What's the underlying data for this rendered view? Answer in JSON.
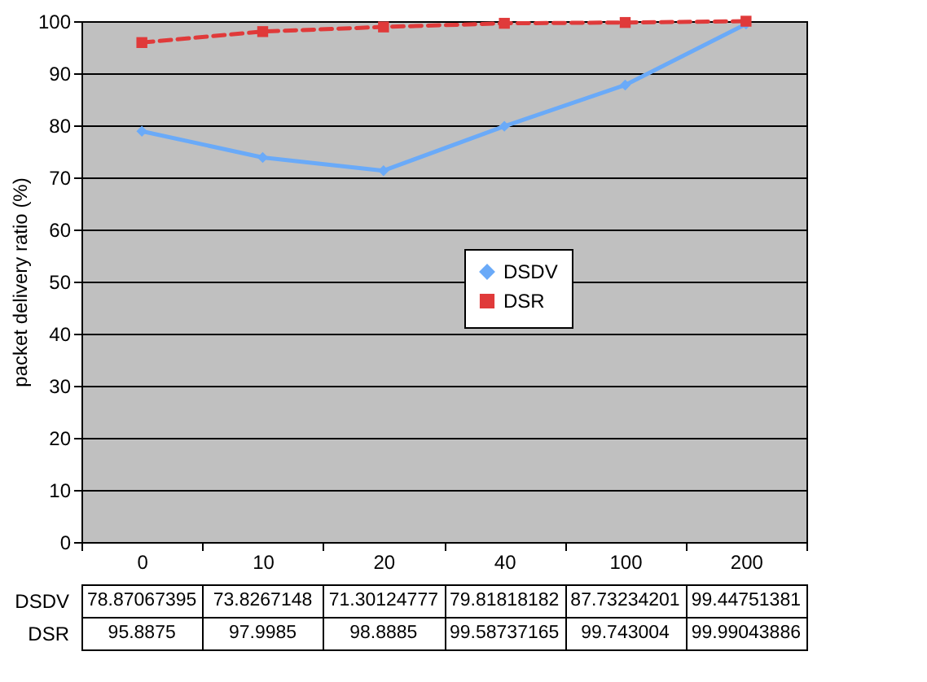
{
  "chart_data": {
    "type": "line",
    "ylabel": "packet delivery ratio (%)",
    "categories": [
      "0",
      "10",
      "20",
      "40",
      "100",
      "200"
    ],
    "series": [
      {
        "name": "DSDV",
        "color": "#6aaaf8",
        "marker": "diamond",
        "line_style": "solid",
        "values": [
          78.87067395,
          73.8267148,
          71.30124777,
          79.81818182,
          87.73234201,
          99.44751381
        ]
      },
      {
        "name": "DSR",
        "color": "#e03a3a",
        "marker": "square",
        "line_style": "dashed",
        "values": [
          95.8875,
          97.9985,
          98.8885,
          99.58737165,
          99.743004,
          99.99043886
        ]
      }
    ],
    "ylim": [
      0,
      100
    ],
    "yticks": [
      0,
      10,
      20,
      30,
      40,
      50,
      60,
      70,
      80,
      90,
      100
    ],
    "grid": "y",
    "legend": "right",
    "data_labels": true
  }
}
